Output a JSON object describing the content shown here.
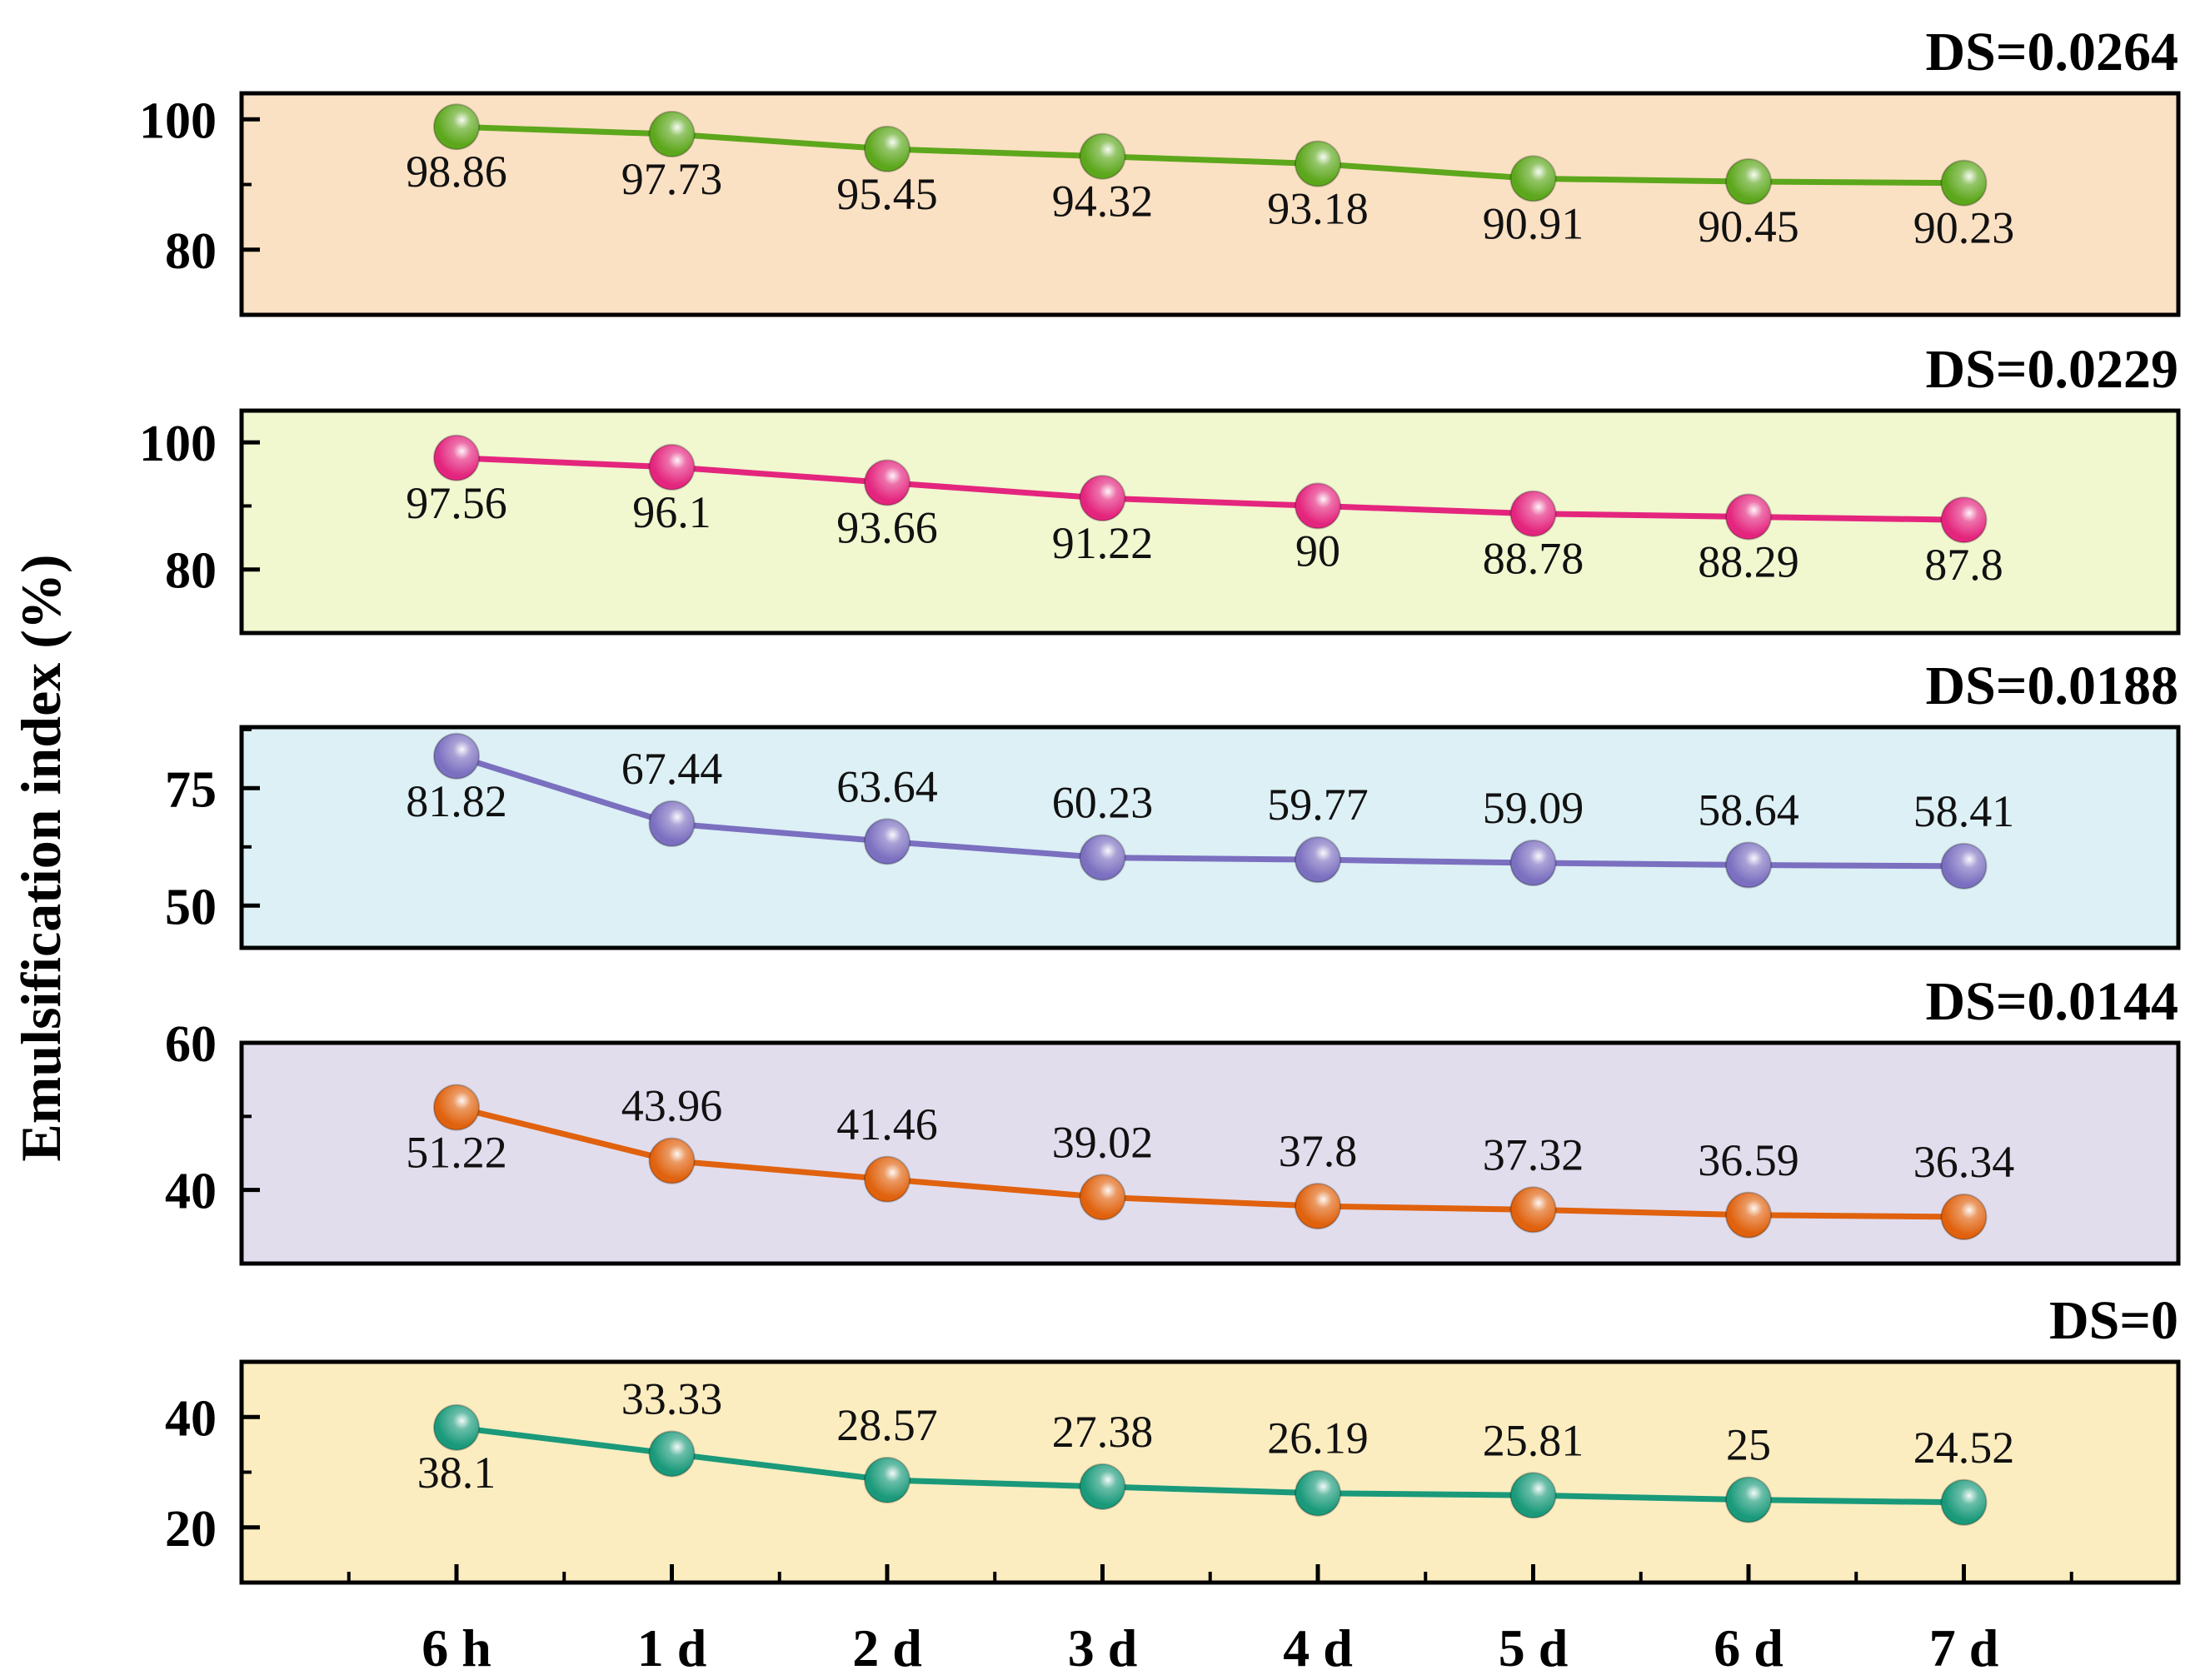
{
  "chart_data": {
    "type": "line",
    "ylabel": "Emulsification index (%)",
    "categories": [
      "6 h",
      "1 d",
      "2 d",
      "3 d",
      "4 d",
      "5 d",
      "6 d",
      "7 d"
    ],
    "series": [
      {
        "name": "DS=0.0264",
        "title": "DS=0.0264",
        "color": "#5da71c",
        "background": "#fbe1c3",
        "ylim": [
          70,
          104
        ],
        "yticks": [
          80,
          100
        ],
        "ytick_labels": [
          "80",
          "100"
        ],
        "values": [
          98.86,
          97.73,
          95.45,
          94.32,
          93.18,
          90.91,
          90.45,
          90.23
        ],
        "labels": [
          "98.86",
          "97.73",
          "95.45",
          "94.32",
          "93.18",
          "90.91",
          "90.45",
          "90.23"
        ],
        "label_positions": [
          "below",
          "below",
          "below",
          "below",
          "below",
          "below",
          "below",
          "below"
        ]
      },
      {
        "name": "DS=0.0229",
        "title": "DS=0.0229",
        "color": "#e4257e",
        "background": "#f1f7cf",
        "ylim": [
          70,
          105
        ],
        "yticks": [
          80,
          100
        ],
        "ytick_labels": [
          "80",
          "100"
        ],
        "values": [
          97.56,
          96.1,
          93.66,
          91.22,
          90,
          88.78,
          88.29,
          87.8
        ],
        "labels": [
          "97.56",
          "96.1",
          "93.66",
          "91.22",
          "90",
          "88.78",
          "88.29",
          "87.8"
        ],
        "label_positions": [
          "below",
          "below",
          "below",
          "below",
          "below",
          "below",
          "below",
          "below"
        ]
      },
      {
        "name": "DS=0.0188",
        "title": "DS=0.0188",
        "color": "#7b6fc0",
        "background": "#dcf0f5",
        "ylim": [
          41,
          88
        ],
        "yticks": [
          50,
          75
        ],
        "ytick_labels": [
          "50",
          "75"
        ],
        "values": [
          81.82,
          67.44,
          63.64,
          60.23,
          59.77,
          59.09,
          58.64,
          58.41
        ],
        "labels": [
          "81.82",
          "67.44",
          "63.64",
          "60.23",
          "59.77",
          "59.09",
          "58.64",
          "58.41"
        ],
        "label_positions": [
          "below",
          "above",
          "above",
          "above",
          "above",
          "above",
          "above",
          "above"
        ]
      },
      {
        "name": "DS=0.0144",
        "title": "DS=0.0144",
        "color": "#e0620e",
        "background": "#e2dded",
        "ylim": [
          30,
          60
        ],
        "yticks": [
          40,
          60
        ],
        "ytick_labels": [
          "40",
          "60"
        ],
        "values": [
          51.22,
          43.96,
          41.46,
          39.02,
          37.8,
          37.32,
          36.59,
          36.34
        ],
        "labels": [
          "51.22",
          "43.96",
          "41.46",
          "39.02",
          "37.8",
          "37.32",
          "36.59",
          "36.34"
        ],
        "label_positions": [
          "below",
          "above",
          "above",
          "above",
          "above",
          "above",
          "above",
          "above"
        ]
      },
      {
        "name": "DS=0",
        "title": "DS=0",
        "color": "#1a9a7a",
        "background": "#fcedc0",
        "ylim": [
          10,
          50
        ],
        "yticks": [
          20,
          40
        ],
        "ytick_labels": [
          "20",
          "40"
        ],
        "values": [
          38.1,
          33.33,
          28.57,
          27.38,
          26.19,
          25.81,
          25,
          24.52
        ],
        "labels": [
          "38.1",
          "33.33",
          "28.57",
          "27.38",
          "26.19",
          "25.81",
          "25",
          "24.52"
        ],
        "label_positions": [
          "below",
          "above",
          "above",
          "above",
          "above",
          "above",
          "above",
          "above"
        ]
      }
    ]
  }
}
